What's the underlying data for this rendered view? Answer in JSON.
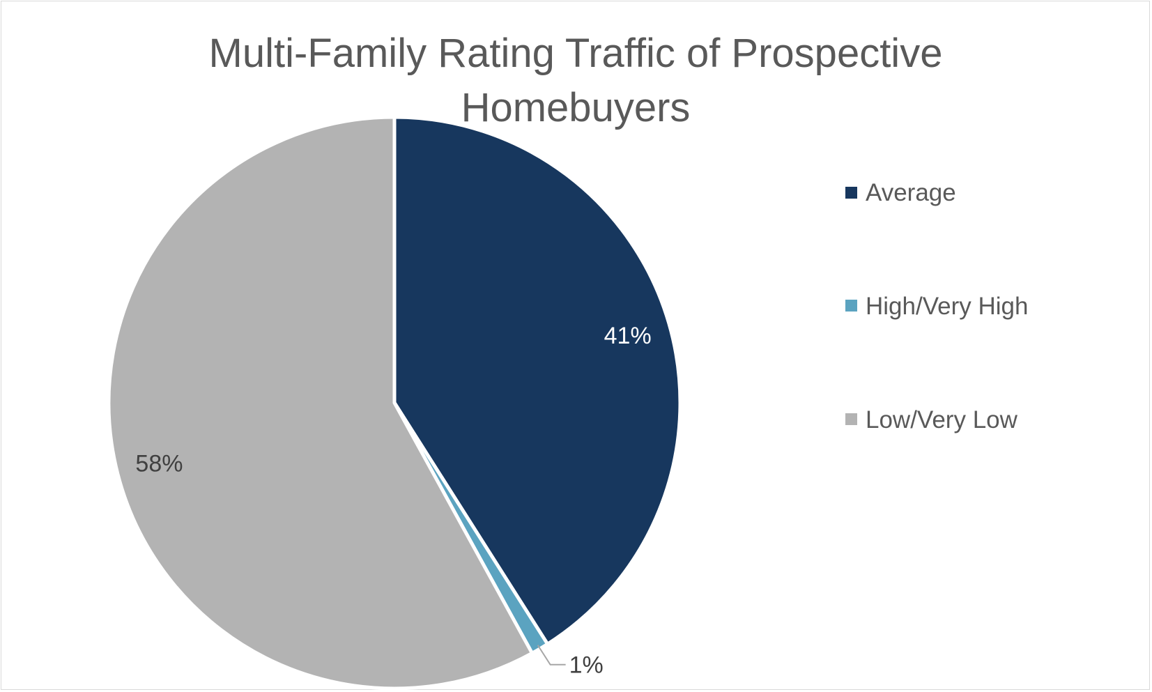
{
  "chart_data": {
    "type": "pie",
    "title": "Multi-Family Rating Traffic of Prospective Homebuyers",
    "title_lines": [
      "Multi-Family Rating Traffic of Prospective",
      "Homebuyers"
    ],
    "categories": [
      "Average",
      "High/Very High",
      "Low/Very Low"
    ],
    "values": [
      41,
      1,
      58
    ],
    "labels": [
      "41%",
      "1%",
      "58%"
    ],
    "colors": [
      "#17375e",
      "#5ba3c0",
      "#b3b3b3"
    ],
    "label_colors": [
      "#ffffff",
      "#404040",
      "#404040"
    ],
    "legend_position": "right"
  }
}
